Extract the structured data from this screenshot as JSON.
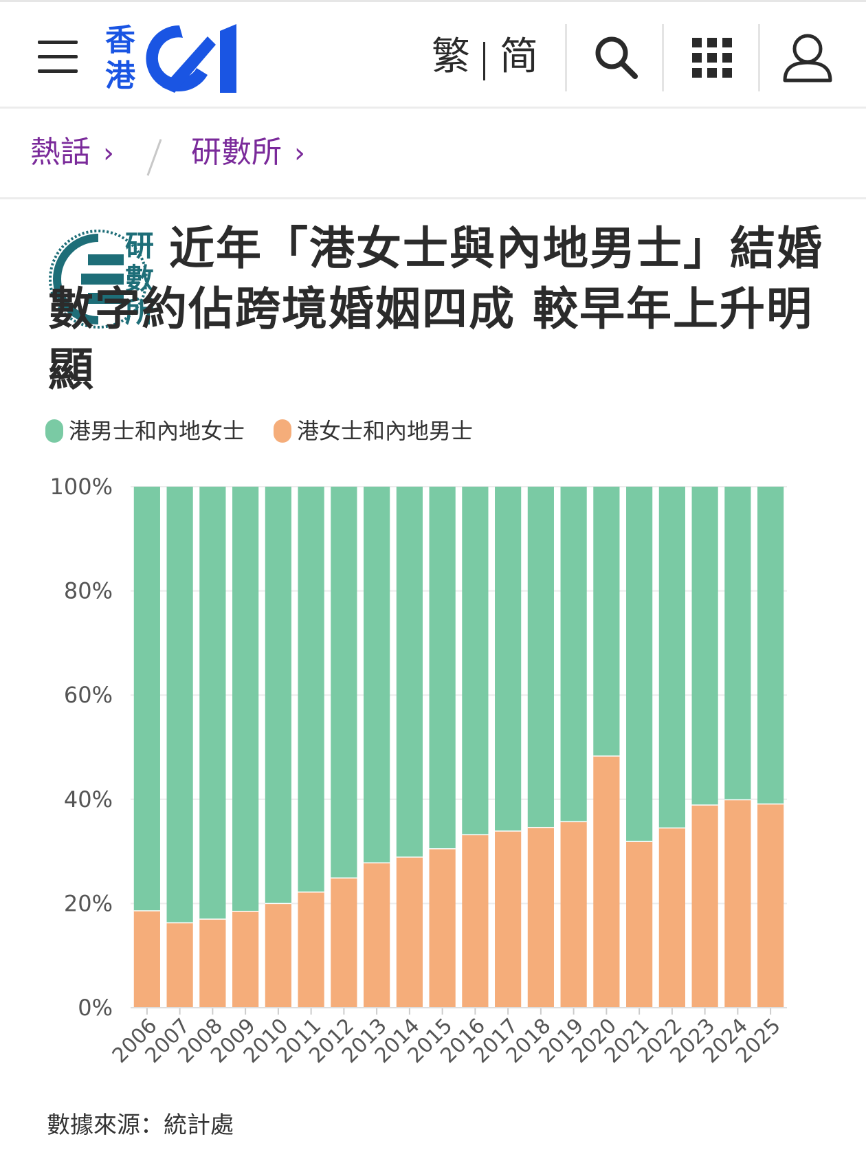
{
  "header": {
    "logo_top": "香",
    "logo_bottom": "港",
    "lang_trad": "繁",
    "lang_simp": "简"
  },
  "breadcrumb": {
    "items": [
      {
        "label": "熱話",
        "chevron": "›"
      },
      {
        "label": "研數所",
        "chevron": "›"
      }
    ]
  },
  "article": {
    "badge_chars": [
      "研",
      "數",
      "所"
    ],
    "title": "近年「港女士與內地男士」結婚數字約佔跨境婚姻四成 較早年上升明顯"
  },
  "chart_data": {
    "type": "bar",
    "stacked": true,
    "categories": [
      "2006",
      "2007",
      "2008",
      "2009",
      "2010",
      "2011",
      "2012",
      "2013",
      "2014",
      "2015",
      "2016",
      "2017",
      "2018",
      "2019",
      "2020",
      "2021",
      "2022",
      "2023",
      "2024",
      "2025"
    ],
    "series": [
      {
        "name": "港女士和內地男士",
        "color": "#f5ad7a",
        "values": [
          18.7,
          16.4,
          17.1,
          18.6,
          20.1,
          22.3,
          25.0,
          27.9,
          29.0,
          30.6,
          33.3,
          34.0,
          34.7,
          35.8,
          48.4,
          32.0,
          34.6,
          39.0,
          40.0,
          39.2
        ]
      },
      {
        "name": "港男士和內地女士",
        "color": "#7acaa4",
        "values": [
          81.3,
          83.6,
          82.9,
          81.4,
          79.9,
          77.7,
          75.0,
          72.1,
          71.0,
          69.4,
          66.7,
          66.0,
          65.3,
          64.2,
          51.6,
          68.0,
          65.4,
          61.0,
          60.0,
          60.8
        ]
      }
    ],
    "legend": [
      "港男士和內地女士",
      "港女士和內地男士"
    ],
    "legend_position": "top-left",
    "y_ticks": [
      "0%",
      "20%",
      "40%",
      "60%",
      "80%",
      "100%"
    ],
    "ylim": [
      0,
      100
    ],
    "grid": true
  },
  "source": {
    "label": "數據來源：",
    "value": "統計處"
  },
  "colors": {
    "brand": "#1a55e3",
    "breadcrumb": "#7a2a9a",
    "badge": "#1e6e78"
  }
}
